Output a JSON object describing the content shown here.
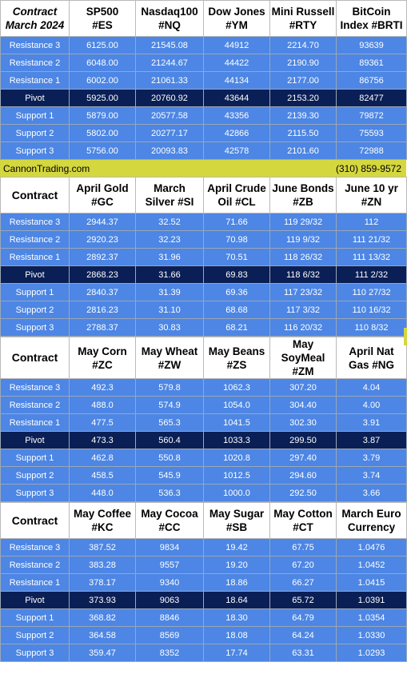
{
  "banner": {
    "site": "CannonTrading.com",
    "phone": "(310) 859-9572"
  },
  "colors": {
    "resistance_support": "#4d86e4",
    "pivot": "#0a1f55",
    "banner": "#d4d73e"
  },
  "row_labels": [
    "Resistance 3",
    "Resistance 2",
    "Resistance 1",
    "Pivot",
    "Support 1",
    "Support 2",
    "Support 3"
  ],
  "tables": [
    {
      "header_lead": [
        "Contract",
        "March 2024"
      ],
      "columns": [
        [
          "SP500",
          "#ES"
        ],
        [
          "Nasdaq100",
          "#NQ"
        ],
        [
          "Dow Jones",
          "#YM"
        ],
        [
          "Mini Russell",
          "#RTY"
        ],
        [
          "BitCoin",
          "Index #BRTI"
        ]
      ],
      "rows": [
        [
          "6125.00",
          "21545.08",
          "44912",
          "2214.70",
          "93639"
        ],
        [
          "6048.00",
          "21244.67",
          "44422",
          "2190.90",
          "89361"
        ],
        [
          "6002.00",
          "21061.33",
          "44134",
          "2177.00",
          "86756"
        ],
        [
          "5925.00",
          "20760.92",
          "43644",
          "2153.20",
          "82477"
        ],
        [
          "5879.00",
          "20577.58",
          "43356",
          "2139.30",
          "79872"
        ],
        [
          "5802.00",
          "20277.17",
          "42866",
          "2115.50",
          "75593"
        ],
        [
          "5756.00",
          "20093.83",
          "42578",
          "2101.60",
          "72988"
        ]
      ]
    },
    {
      "header_lead": [
        "Contract"
      ],
      "columns": [
        [
          "April Gold",
          "#GC"
        ],
        [
          "March",
          "Silver #SI"
        ],
        [
          "April Crude",
          "Oil #CL"
        ],
        [
          "June Bonds",
          "#ZB"
        ],
        [
          "June 10 yr",
          "#ZN"
        ]
      ],
      "rows": [
        [
          "2944.37",
          "32.52",
          "71.66",
          "119 29/32",
          "112"
        ],
        [
          "2920.23",
          "32.23",
          "70.98",
          "119  9/32",
          "111 21/32"
        ],
        [
          "2892.37",
          "31.96",
          "70.51",
          "118 26/32",
          "111 13/32"
        ],
        [
          "2868.23",
          "31.66",
          "69.83",
          "118  6/32",
          "111  2/32"
        ],
        [
          "2840.37",
          "31.39",
          "69.36",
          "117 23/32",
          "110 27/32"
        ],
        [
          "2816.23",
          "31.10",
          "68.68",
          "117  3/32",
          "110 16/32"
        ],
        [
          "2788.37",
          "30.83",
          "68.21",
          "116 20/32",
          "110  8/32"
        ]
      ]
    },
    {
      "header_lead": [
        "Contract"
      ],
      "columns": [
        [
          "May Corn",
          "#ZC"
        ],
        [
          "May  Wheat",
          "#ZW"
        ],
        [
          "May Beans",
          "#ZS"
        ],
        [
          "May",
          "SoyMeal",
          "#ZM"
        ],
        [
          "April Nat",
          "Gas #NG"
        ]
      ],
      "rows": [
        [
          "492.3",
          "579.8",
          "1062.3",
          "307.20",
          "4.04"
        ],
        [
          "488.0",
          "574.9",
          "1054.0",
          "304.40",
          "4.00"
        ],
        [
          "477.5",
          "565.3",
          "1041.5",
          "302.30",
          "3.91"
        ],
        [
          "473.3",
          "560.4",
          "1033.3",
          "299.50",
          "3.87"
        ],
        [
          "462.8",
          "550.8",
          "1020.8",
          "297.40",
          "3.79"
        ],
        [
          "458.5",
          "545.9",
          "1012.5",
          "294.60",
          "3.74"
        ],
        [
          "448.0",
          "536.3",
          "1000.0",
          "292.50",
          "3.66"
        ]
      ]
    },
    {
      "header_lead": [
        "Contract"
      ],
      "columns": [
        [
          "May Coffee",
          "#KC"
        ],
        [
          "May Cocoa",
          "#CC"
        ],
        [
          "May Sugar",
          "#SB"
        ],
        [
          "May Cotton",
          "#CT"
        ],
        [
          "March Euro",
          "Currency"
        ]
      ],
      "rows": [
        [
          "387.52",
          "9834",
          "19.42",
          "67.75",
          "1.0476"
        ],
        [
          "383.28",
          "9557",
          "19.20",
          "67.20",
          "1.0452"
        ],
        [
          "378.17",
          "9340",
          "18.86",
          "66.27",
          "1.0415"
        ],
        [
          "373.93",
          "9063",
          "18.64",
          "65.72",
          "1.0391"
        ],
        [
          "368.82",
          "8846",
          "18.30",
          "64.79",
          "1.0354"
        ],
        [
          "364.58",
          "8569",
          "18.08",
          "64.24",
          "1.0330"
        ],
        [
          "359.47",
          "8352",
          "17.74",
          "63.31",
          "1.0293"
        ]
      ]
    }
  ]
}
